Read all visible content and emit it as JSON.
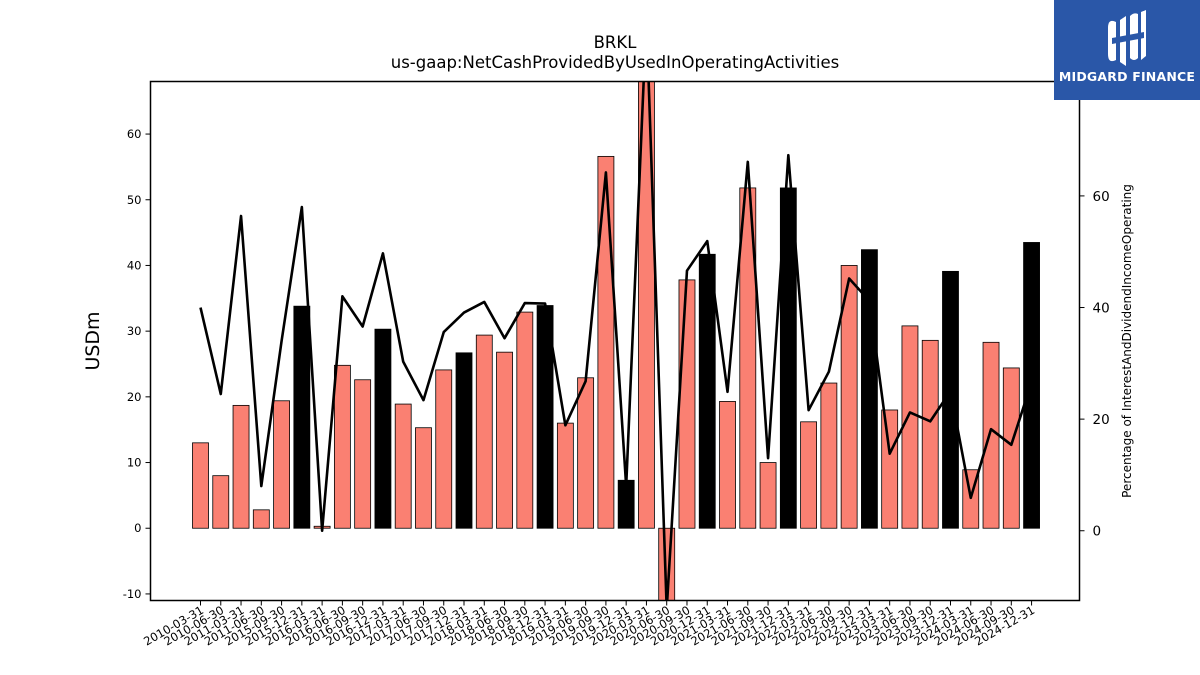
{
  "chart_data": {
    "type": "bar",
    "title": "BRKL",
    "subtitle": "us-gaap:NetCashProvidedByUsedInOperatingActivities",
    "ylabel": "USDm",
    "y2label": "Percentage of InterestAndDividendIncomeOperating",
    "ylim": [
      -11,
      68
    ],
    "y2lim": [
      -12.5,
      80.5
    ],
    "yticks": [
      -10,
      0,
      10,
      20,
      30,
      40,
      50,
      60
    ],
    "y2ticks": [
      0,
      20,
      40,
      60
    ],
    "categories": [
      "2010-03-31",
      "2010-06-30",
      "2011-03-31",
      "2011-06-30",
      "2015-09-30",
      "2015-12-31",
      "2016-03-31",
      "2016-06-30",
      "2016-09-30",
      "2016-12-31",
      "2017-03-31",
      "2017-06-30",
      "2017-09-30",
      "2017-12-31",
      "2018-03-31",
      "2018-06-30",
      "2018-09-30",
      "2018-12-31",
      "2019-03-31",
      "2019-06-30",
      "2019-09-30",
      "2019-12-31",
      "2020-03-31",
      "2020-06-30",
      "2020-09-30",
      "2020-12-31",
      "2021-03-31",
      "2021-06-30",
      "2021-09-30",
      "2021-12-31",
      "2022-03-31",
      "2022-06-30",
      "2022-09-30",
      "2022-12-31",
      "2023-03-31",
      "2023-06-30",
      "2023-09-30",
      "2023-12-31",
      "2024-03-31",
      "2024-06-30",
      "2024-09-30",
      "2024-12-31"
    ],
    "series": [
      {
        "type": "bar",
        "values": [
          13.0,
          8.0,
          18.7,
          2.8,
          19.4,
          33.8,
          0.3,
          24.8,
          22.6,
          30.3,
          18.9,
          15.3,
          24.1,
          26.7,
          29.4,
          26.8,
          32.9,
          33.9,
          16.0,
          22.9,
          56.6,
          7.3,
          69.0,
          -12.0,
          37.8,
          41.7,
          19.3,
          51.8,
          10.0,
          51.8,
          16.2,
          22.1,
          40.0,
          42.4,
          18.0,
          30.8,
          28.6,
          39.1,
          8.9,
          28.3,
          24.4,
          43.5
        ],
        "colors": [
          "salmon",
          "salmon",
          "salmon",
          "salmon",
          "salmon",
          "black",
          "salmon",
          "salmon",
          "salmon",
          "black",
          "salmon",
          "salmon",
          "salmon",
          "black",
          "salmon",
          "salmon",
          "salmon",
          "black",
          "salmon",
          "salmon",
          "salmon",
          "black",
          "salmon",
          "salmon",
          "salmon",
          "black",
          "salmon",
          "salmon",
          "salmon",
          "black",
          "salmon",
          "salmon",
          "salmon",
          "black",
          "salmon",
          "salmon",
          "salmon",
          "black",
          "salmon",
          "salmon",
          "salmon",
          "black"
        ]
      },
      {
        "type": "line",
        "axis": "right",
        "values": [
          40.0,
          24.5,
          56.4,
          8.0,
          34.0,
          58.0,
          0.0,
          42.0,
          36.6,
          49.7,
          30.3,
          23.4,
          35.6,
          39.1,
          41.0,
          34.5,
          40.8,
          40.7,
          18.9,
          26.8,
          64.2,
          8.0,
          92.0,
          -14.0,
          46.6,
          51.9,
          24.9,
          66.1,
          13.0,
          67.3,
          21.6,
          28.5,
          45.2,
          41.2,
          13.8,
          21.2,
          19.6,
          25.0,
          5.9,
          18.2,
          15.4,
          26.6
        ]
      }
    ],
    "grid": false,
    "colors": {
      "salmon": "#fa8072",
      "black": "#000000",
      "line": "#000000"
    }
  },
  "logo": {
    "text": "MIDGARD FINANCE",
    "background": "#2a57a8"
  }
}
